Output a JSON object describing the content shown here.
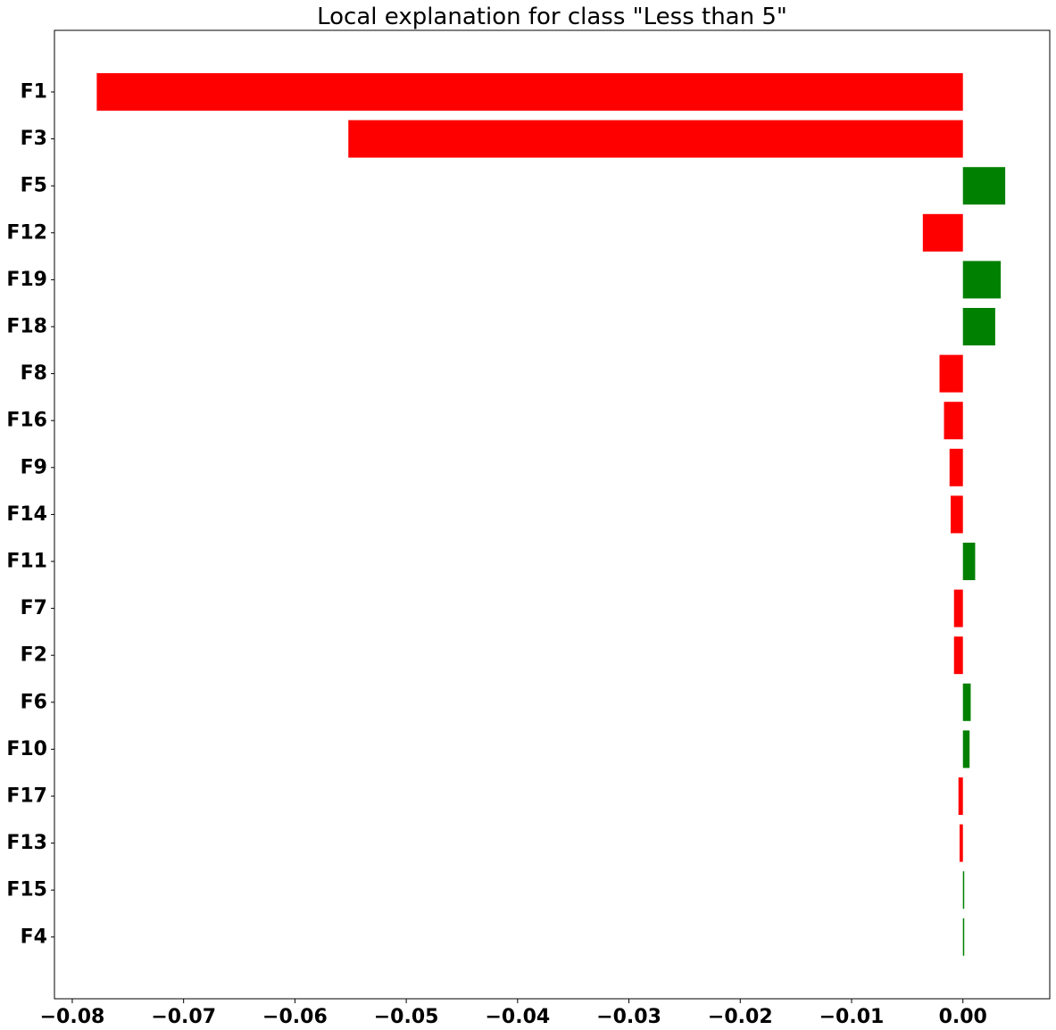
{
  "chart_data": {
    "type": "bar",
    "orientation": "horizontal",
    "title": "Local explanation for class \"Less than 5\"",
    "xlabel": "",
    "ylabel": "",
    "xlim": [
      -0.0816,
      0.0078
    ],
    "xticks": [
      -0.08,
      -0.07,
      -0.06,
      -0.05,
      -0.04,
      -0.03,
      -0.02,
      -0.01,
      0.0
    ],
    "xtick_labels": [
      "−0.08",
      "−0.07",
      "−0.06",
      "−0.05",
      "−0.04",
      "−0.03",
      "−0.02",
      "−0.01",
      "0.00"
    ],
    "categories": [
      "F1",
      "F3",
      "F5",
      "F12",
      "F19",
      "F18",
      "F8",
      "F16",
      "F9",
      "F14",
      "F11",
      "F7",
      "F2",
      "F6",
      "F10",
      "F17",
      "F13",
      "F15",
      "F4"
    ],
    "values": [
      -0.0778,
      -0.0552,
      0.0038,
      -0.0036,
      0.0034,
      0.0029,
      -0.0021,
      -0.0017,
      -0.0012,
      -0.0011,
      0.0011,
      -0.0008,
      -0.0008,
      0.0007,
      0.0006,
      -0.0004,
      -0.0003,
      0.0001,
      0.0001
    ],
    "colors": {
      "positive": "#008000",
      "negative": "#ff0000"
    },
    "grid": false,
    "legend": "none"
  }
}
